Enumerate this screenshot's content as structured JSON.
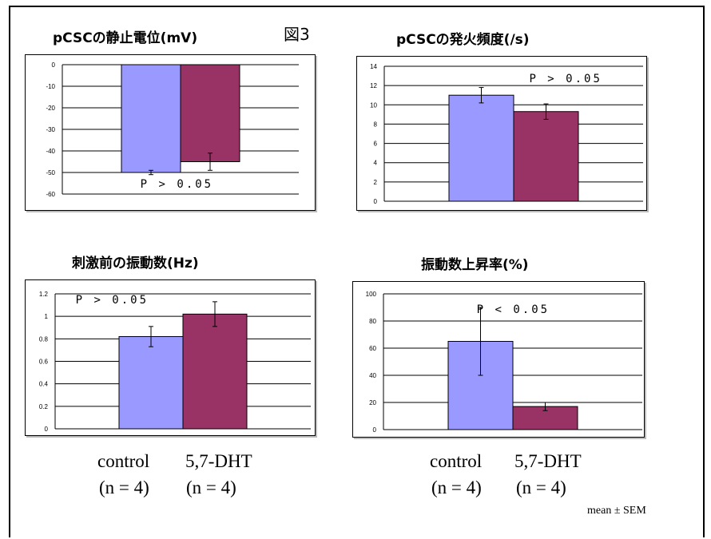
{
  "figure_label": "図3",
  "note": "mean ± SEM",
  "groups": {
    "left": {
      "g1": "control",
      "g1_n": "(n = 4)",
      "g2": "5,7-DHT",
      "g2_n": "(n = 4)"
    },
    "right": {
      "g1": "control",
      "g1_n": "(n = 4)",
      "g2": "5,7-DHT",
      "g2_n": "(n = 4)"
    }
  },
  "colors": {
    "control": "#9999ff",
    "dht": "#993366"
  },
  "chart_data": [
    {
      "type": "bar",
      "title": "pCSCの静止電位(mV)",
      "categories": [
        "control",
        "5,7-DHT"
      ],
      "values": [
        -50,
        -45
      ],
      "errors": [
        1,
        4
      ],
      "ylim": [
        -60,
        0
      ],
      "yticks": [
        0,
        -10,
        -20,
        -30,
        -40,
        -50,
        -60
      ],
      "ytick_labels": [
        "0",
        "-10",
        "-20",
        "-30",
        "-40",
        "-50",
        "-60"
      ],
      "annotation": "P > 0.05",
      "grid": true
    },
    {
      "type": "bar",
      "title": "pCSCの発火頻度(/s)",
      "categories": [
        "control",
        "5,7-DHT"
      ],
      "values": [
        11,
        9.3
      ],
      "errors": [
        0.8,
        0.8
      ],
      "ylim": [
        0,
        14
      ],
      "yticks": [
        0,
        2,
        4,
        6,
        8,
        10,
        12,
        14
      ],
      "ytick_labels": [
        "0",
        "2",
        "4",
        "6",
        "8",
        "10",
        "12",
        "14"
      ],
      "annotation": "P > 0.05",
      "grid": true
    },
    {
      "type": "bar",
      "title": "刺激前の振動数(Hz)",
      "categories": [
        "control",
        "5,7-DHT"
      ],
      "values": [
        0.82,
        1.02
      ],
      "errors": [
        0.09,
        0.11
      ],
      "ylim": [
        0,
        1.2
      ],
      "yticks": [
        0,
        0.2,
        0.4,
        0.6,
        0.8,
        1,
        1.2
      ],
      "ytick_labels": [
        "0",
        "0.2",
        "0.4",
        "0.6",
        "0.8",
        "1",
        "1.2"
      ],
      "annotation": "P > 0.05",
      "grid": true
    },
    {
      "type": "bar",
      "title": "振動数上昇率(%)",
      "categories": [
        "control",
        "5,7-DHT"
      ],
      "values": [
        65,
        17
      ],
      "errors": [
        25,
        3
      ],
      "ylim": [
        0,
        100
      ],
      "yticks": [
        0,
        20,
        40,
        60,
        80,
        100
      ],
      "ytick_labels": [
        "0",
        "20",
        "40",
        "60",
        "80",
        "100"
      ],
      "annotation": "P < 0.05",
      "grid": true
    }
  ]
}
